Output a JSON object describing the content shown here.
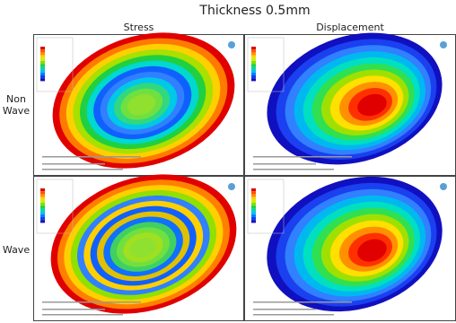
{
  "header": {
    "title": "Thickness 0.5mm"
  },
  "columns": [
    "Stress",
    "Displacement"
  ],
  "rows": [
    "Non Wave",
    "Wave"
  ]
}
